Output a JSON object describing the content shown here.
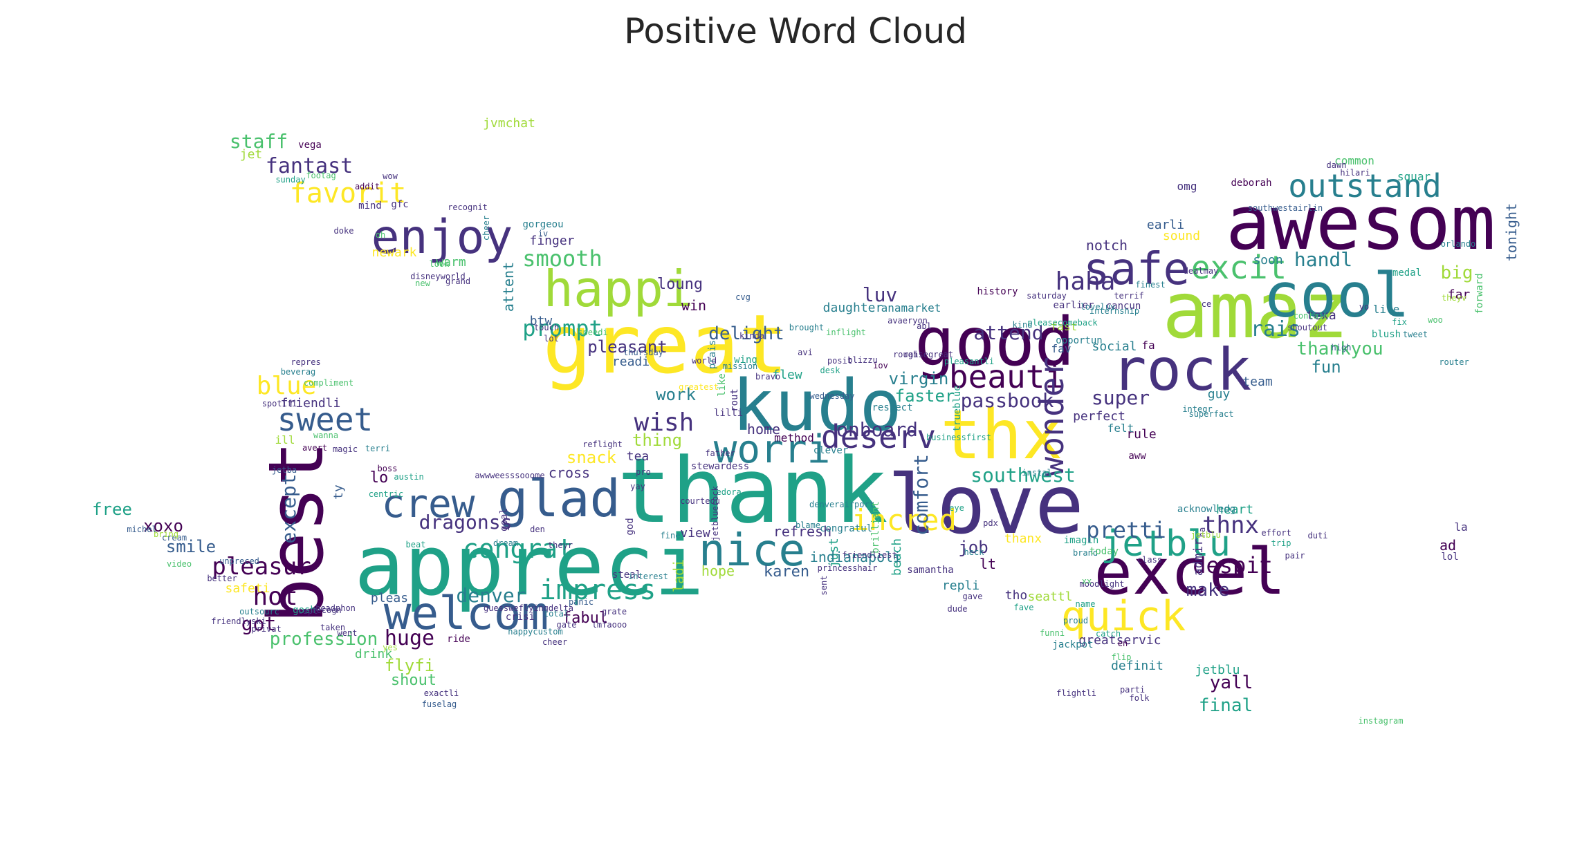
{
  "title": "Positive Word Cloud",
  "palette": [
    "#440154",
    "#46327e",
    "#365c8d",
    "#277f8e",
    "#1fa187",
    "#4ac16d",
    "#a0da39",
    "#fde725"
  ],
  "words": [
    {
      "text": "thank",
      "c": 4
    },
    {
      "text": "appreci",
      "c": 4
    },
    {
      "text": "great",
      "c": 7
    },
    {
      "text": "best",
      "c": 0
    },
    {
      "text": "awesom",
      "c": 0
    },
    {
      "text": "love",
      "c": 1
    },
    {
      "text": "amaz",
      "c": 6
    },
    {
      "text": "good",
      "c": 0
    },
    {
      "text": "excel",
      "c": 0
    },
    {
      "text": "kudo",
      "c": 3
    },
    {
      "text": "thx",
      "c": 7
    },
    {
      "text": "cool",
      "c": 3
    },
    {
      "text": "rock",
      "c": 1
    },
    {
      "text": "happi",
      "c": 6
    },
    {
      "text": "enjoy",
      "c": 1
    },
    {
      "text": "welcom",
      "c": 2
    },
    {
      "text": "glad",
      "c": 2
    },
    {
      "text": "nice",
      "c": 3
    },
    {
      "text": "safe",
      "c": 1
    },
    {
      "text": "worri",
      "c": 3
    },
    {
      "text": "crew",
      "c": 2
    },
    {
      "text": "outstand",
      "c": 3
    },
    {
      "text": "quick",
      "c": 7
    },
    {
      "text": "deserv",
      "c": 1
    },
    {
      "text": "beauti",
      "c": 0
    },
    {
      "text": "jetblu",
      "c": 4
    },
    {
      "text": "wonder",
      "c": 1
    },
    {
      "text": "excit",
      "c": 5
    },
    {
      "text": "sweet",
      "c": 2
    },
    {
      "text": "incred",
      "c": 7
    },
    {
      "text": "impress",
      "c": 4
    },
    {
      "text": "pleasur",
      "c": 0
    },
    {
      "text": "favorit",
      "c": 7
    },
    {
      "text": "blue",
      "c": 7
    },
    {
      "text": "smooth",
      "c": 5
    },
    {
      "text": "prompt",
      "c": 4
    },
    {
      "text": "wish",
      "c": 1
    },
    {
      "text": "thnx",
      "c": 1
    },
    {
      "text": "despit",
      "c": 0
    },
    {
      "text": "haha",
      "c": 1
    },
    {
      "text": "southwest",
      "c": 4
    },
    {
      "text": "hot",
      "c": 0
    },
    {
      "text": "pretti",
      "c": 2
    },
    {
      "text": "fantast",
      "c": 1
    },
    {
      "text": "congrat",
      "c": 4
    },
    {
      "text": "huge",
      "c": 0
    },
    {
      "text": "passbook",
      "c": 1
    },
    {
      "text": "attend",
      "c": 1
    },
    {
      "text": "handl",
      "c": 3
    },
    {
      "text": "rais",
      "c": 3
    },
    {
      "text": "luv",
      "c": 1
    },
    {
      "text": "onboard",
      "c": 1
    },
    {
      "text": "except",
      "c": 2
    },
    {
      "text": "comfort",
      "c": 2
    },
    {
      "text": "denver",
      "c": 3
    },
    {
      "text": "dragonss",
      "c": 1
    },
    {
      "text": "staff",
      "c": 5
    },
    {
      "text": "big",
      "c": 6
    },
    {
      "text": "super",
      "c": 1
    },
    {
      "text": "thankyou",
      "c": 5
    },
    {
      "text": "pleasant",
      "c": 1
    },
    {
      "text": "delight",
      "c": 2
    },
    {
      "text": "profession",
      "c": 5
    },
    {
      "text": "make",
      "c": 1
    },
    {
      "text": "final",
      "c": 4
    },
    {
      "text": "yall",
      "c": 0
    },
    {
      "text": "virgin",
      "c": 3
    },
    {
      "text": "job",
      "c": 1
    },
    {
      "text": "fun",
      "c": 3
    },
    {
      "text": "faster",
      "c": 4
    },
    {
      "text": "snack",
      "c": 7
    },
    {
      "text": "cross",
      "c": 1
    },
    {
      "text": "thing",
      "c": 6
    },
    {
      "text": "home",
      "c": 1
    },
    {
      "text": "karen",
      "c": 2
    },
    {
      "text": "smile",
      "c": 2
    },
    {
      "text": "got",
      "c": 0
    },
    {
      "text": "xoxo",
      "c": 0
    },
    {
      "text": "free",
      "c": 4
    },
    {
      "text": "flyfi",
      "c": 6
    },
    {
      "text": "shout",
      "c": 5
    },
    {
      "text": "fabul",
      "c": 0
    },
    {
      "text": "refresh",
      "c": 1
    },
    {
      "text": "hope",
      "c": 6
    },
    {
      "text": "work",
      "c": 3
    },
    {
      "text": "loung",
      "c": 1
    },
    {
      "text": "win",
      "c": 0
    },
    {
      "text": "readi",
      "c": 2
    },
    {
      "text": "btw",
      "c": 2
    },
    {
      "text": "finger",
      "c": 1
    },
    {
      "text": "attent",
      "c": 3
    },
    {
      "text": "notch",
      "c": 1
    },
    {
      "text": "sound",
      "c": 7
    },
    {
      "text": "earli",
      "c": 2
    },
    {
      "text": "soon",
      "c": 3
    },
    {
      "text": "far",
      "c": 0
    },
    {
      "text": "tonight",
      "c": 2
    },
    {
      "text": "team",
      "c": 2
    },
    {
      "text": "guy",
      "c": 3
    },
    {
      "text": "perfect",
      "c": 1
    },
    {
      "text": "rule",
      "c": 0
    },
    {
      "text": "social",
      "c": 3
    },
    {
      "text": "fav",
      "c": 2
    },
    {
      "text": "fast",
      "c": 6
    },
    {
      "text": "friendli",
      "c": 1
    },
    {
      "text": "jetblu",
      "c": 4
    },
    {
      "text": "seattl",
      "c": 6
    },
    {
      "text": "greatservic",
      "c": 1
    },
    {
      "text": "definit",
      "c": 3
    },
    {
      "text": "admir",
      "c": 1
    },
    {
      "text": "repli",
      "c": 3
    },
    {
      "text": "daughter",
      "c": 3
    },
    {
      "text": "anamarket",
      "c": 3
    },
    {
      "text": "flew",
      "c": 4
    },
    {
      "text": "view",
      "c": 1
    },
    {
      "text": "just",
      "c": 4
    },
    {
      "text": "beach",
      "c": 4
    },
    {
      "text": "ladi",
      "c": 6
    },
    {
      "text": "omg",
      "c": 1
    },
    {
      "text": "common",
      "c": 5
    },
    {
      "text": "texa",
      "c": 1
    },
    {
      "text": "mind",
      "c": 1
    },
    {
      "text": "jvmchat",
      "c": 6
    },
    {
      "text": "jet",
      "c": 6
    },
    {
      "text": "history",
      "c": 0
    },
    {
      "text": "heart",
      "c": 4
    },
    {
      "text": "la",
      "c": 1
    },
    {
      "text": "ad",
      "c": 0
    },
    {
      "text": "lol",
      "c": 1
    },
    {
      "text": "tho",
      "c": 1
    },
    {
      "text": "lt",
      "c": 0
    },
    {
      "text": "tea",
      "c": 1
    },
    {
      "text": "steal",
      "c": 1
    },
    {
      "text": "pleas",
      "c": 2
    },
    {
      "text": "drink",
      "c": 5
    },
    {
      "text": "ride",
      "c": 0
    },
    {
      "text": "fa",
      "c": 0
    },
    {
      "text": "ill",
      "c": 6
    },
    {
      "text": "lo",
      "c": 0
    },
    {
      "text": "ty",
      "c": 2
    },
    {
      "text": "wanna",
      "c": 5
    },
    {
      "text": "magic",
      "c": 1
    },
    {
      "text": "boss",
      "c": 0
    },
    {
      "text": "avert",
      "c": 0
    },
    {
      "text": "terri",
      "c": 3
    },
    {
      "text": "austin",
      "c": 4
    },
    {
      "text": "jetba",
      "c": 2
    },
    {
      "text": "cream",
      "c": 2
    },
    {
      "text": "video",
      "c": 5
    },
    {
      "text": "safeti",
      "c": 7
    },
    {
      "text": "gosh",
      "c": 4
    },
    {
      "text": "outsourc",
      "c": 3
    },
    {
      "text": "warm",
      "c": 5
    },
    {
      "text": "newark",
      "c": 7
    },
    {
      "text": "gfc",
      "c": 1
    },
    {
      "text": "grand",
      "c": 1
    },
    {
      "text": "sunday",
      "c": 4
    },
    {
      "text": "wow",
      "c": 1
    },
    {
      "text": "gorgeou",
      "c": 3
    },
    {
      "text": "recognit",
      "c": 1
    },
    {
      "text": "touch",
      "c": 1
    },
    {
      "text": "cheer",
      "c": 3
    },
    {
      "text": "iov",
      "c": 0
    },
    {
      "text": "desk",
      "c": 4
    },
    {
      "text": "respect",
      "c": 3
    },
    {
      "text": "trueblue",
      "c": 4
    },
    {
      "text": "businessfirst",
      "c": 4
    },
    {
      "text": "pleasantli",
      "c": 4
    },
    {
      "text": "earlier",
      "c": 1
    },
    {
      "text": "felt",
      "c": 3
    },
    {
      "text": "cancun",
      "c": 1
    },
    {
      "text": "opportun",
      "c": 3
    },
    {
      "text": "high",
      "c": 2
    },
    {
      "text": "tweet",
      "c": 3
    },
    {
      "text": "woo",
      "c": 5
    },
    {
      "text": "thanx",
      "c": 7
    },
    {
      "text": "eye",
      "c": 4
    },
    {
      "text": "brand",
      "c": 3
    },
    {
      "text": "imagin",
      "c": 4
    },
    {
      "text": "proud",
      "c": 3
    },
    {
      "text": "jackpot",
      "c": 3
    },
    {
      "text": "funni",
      "c": 5
    },
    {
      "text": "class",
      "c": 1
    },
    {
      "text": "acknowledg",
      "c": 3
    },
    {
      "text": "prais",
      "c": 3
    },
    {
      "text": "like",
      "c": 5
    },
    {
      "text": "wing",
      "c": 4
    },
    {
      "text": "rout",
      "c": 1
    },
    {
      "text": "clever",
      "c": 3
    },
    {
      "text": "method",
      "c": 0
    },
    {
      "text": "congratul",
      "c": 3
    },
    {
      "text": "indianapoli",
      "c": 3
    },
    {
      "text": "brilliant",
      "c": 5
    },
    {
      "text": "god",
      "c": 1
    },
    {
      "text": "goal",
      "c": 1
    },
    {
      "text": "awwweesssooome",
      "c": 1
    },
    {
      "text": "pro",
      "c": 1
    },
    {
      "text": "yay",
      "c": 1
    },
    {
      "text": "stewardess",
      "c": 1
    },
    {
      "text": "fine",
      "c": 3
    },
    {
      "text": "crisi",
      "c": 1
    },
    {
      "text": "theyr",
      "c": 1
    },
    {
      "text": "beat",
      "c": 4
    },
    {
      "text": "centric",
      "c": 4
    },
    {
      "text": "reflight",
      "c": 1
    },
    {
      "text": "vega",
      "c": 0
    },
    {
      "text": "samantha",
      "c": 1
    },
    {
      "text": "today",
      "c": 5
    },
    {
      "text": "moodlight",
      "c": 1
    },
    {
      "text": "name",
      "c": 4
    },
    {
      "text": "fave",
      "c": 4
    },
    {
      "text": "lilli",
      "c": 1
    },
    {
      "text": "aww",
      "c": 0
    },
    {
      "text": "theyv",
      "c": 6
    },
    {
      "text": "life",
      "c": 3
    },
    {
      "text": "forward",
      "c": 5
    },
    {
      "text": "blush",
      "c": 4
    },
    {
      "text": "shoutout",
      "c": 1
    },
    {
      "text": "deborah",
      "c": 0
    },
    {
      "text": "squar",
      "c": 4
    },
    {
      "text": "dawn",
      "c": 1
    },
    {
      "text": "hilari",
      "c": 1
    },
    {
      "text": "folk",
      "c": 1
    },
    {
      "text": "parti",
      "c": 1
    },
    {
      "text": "flightli",
      "c": 1
    },
    {
      "text": "southwestairlin",
      "c": 2
    },
    {
      "text": "medal",
      "c": 4
    },
    {
      "text": "orlando",
      "c": 3
    },
    {
      "text": "router",
      "c": 3
    },
    {
      "text": "instagram",
      "c": 5
    },
    {
      "text": "catch",
      "c": 4
    },
    {
      "text": "flip",
      "c": 5
    },
    {
      "text": "en",
      "c": 0
    },
    {
      "text": "xx",
      "c": 5
    },
    {
      "text": "ha",
      "c": 1
    },
    {
      "text": "dude",
      "c": 1
    },
    {
      "text": "gave",
      "c": 1
    },
    {
      "text": "heck",
      "c": 3
    },
    {
      "text": "pdx",
      "c": 1
    },
    {
      "text": "instal",
      "c": 3
    },
    {
      "text": "saturday",
      "c": 1
    },
    {
      "text": "iv",
      "c": 2
    },
    {
      "text": "doke",
      "c": 1
    },
    {
      "text": "oh",
      "c": 5
    },
    {
      "text": "footag",
      "c": 5
    },
    {
      "text": "addit",
      "c": 0
    },
    {
      "text": "repres",
      "c": 1
    },
    {
      "text": "beverag",
      "c": 3
    },
    {
      "text": "compliment",
      "c": 5
    },
    {
      "text": "spotifi",
      "c": 1
    },
    {
      "text": "bring",
      "c": 6
    },
    {
      "text": "unpreced",
      "c": 2
    },
    {
      "text": "michel",
      "c": 2
    },
    {
      "text": "better",
      "c": 1
    },
    {
      "text": "friendlyski",
      "c": 1
    },
    {
      "text": "recogn",
      "c": 1
    },
    {
      "text": "capt",
      "c": 1
    },
    {
      "text": "headphon",
      "c": 1
    },
    {
      "text": "taken",
      "c": 1
    },
    {
      "text": "went",
      "c": 1
    },
    {
      "text": "exactli",
      "c": 1
    },
    {
      "text": "fuselag",
      "c": 2
    },
    {
      "text": "privat",
      "c": 1
    },
    {
      "text": "yes",
      "c": 6
    },
    {
      "text": "guessweflyingdelta",
      "c": 1
    },
    {
      "text": "total",
      "c": 3
    },
    {
      "text": "panic",
      "c": 2
    },
    {
      "text": "interest",
      "c": 3
    },
    {
      "text": "grate",
      "c": 1
    },
    {
      "text": "lmfaooo",
      "c": 1
    },
    {
      "text": "den",
      "c": 1
    },
    {
      "text": "friendliest",
      "c": 1
    },
    {
      "text": "blizzu",
      "c": 1
    },
    {
      "text": "posit",
      "c": 1
    },
    {
      "text": "kinda",
      "c": 1
    },
    {
      "text": "mission",
      "c": 3
    },
    {
      "text": "speedi",
      "c": 5
    },
    {
      "text": "lot",
      "c": 1
    },
    {
      "text": "cvg",
      "c": 2
    },
    {
      "text": "inflight",
      "c": 5
    },
    {
      "text": "raisegreat",
      "c": 1
    },
    {
      "text": "abl",
      "c": 1
    },
    {
      "text": "disneyworld",
      "c": 1
    },
    {
      "text": "new",
      "c": 5
    },
    {
      "text": "look",
      "c": 5
    },
    {
      "text": "thursday",
      "c": 2
    },
    {
      "text": "world",
      "c": 1
    },
    {
      "text": "greatest",
      "c": 7
    },
    {
      "text": "wednesday",
      "c": 2
    },
    {
      "text": "denverairport",
      "c": 3
    },
    {
      "text": "father",
      "c": 1
    },
    {
      "text": "fedora",
      "c": 4
    },
    {
      "text": "courteou",
      "c": 1
    },
    {
      "text": "jetbluerock",
      "c": 1
    },
    {
      "text": "princesshair",
      "c": 1
    },
    {
      "text": "sent",
      "c": 1
    },
    {
      "text": "dream",
      "c": 3
    },
    {
      "text": "cheer",
      "c": 1
    },
    {
      "text": "happycustom",
      "c": 3
    },
    {
      "text": "gate",
      "c": 1
    },
    {
      "text": "blame",
      "c": 3
    },
    {
      "text": "avi",
      "c": 1
    },
    {
      "text": "brought",
      "c": 3
    },
    {
      "text": "bravo",
      "c": 1
    },
    {
      "text": "avaeryon",
      "c": 1
    },
    {
      "text": "rough",
      "c": 1
    },
    {
      "text": "pleasecomeback",
      "c": 4
    },
    {
      "text": "internship",
      "c": 3
    },
    {
      "text": "finest",
      "c": 3
    },
    {
      "text": "terrif",
      "c": 1
    },
    {
      "text": "dealmay",
      "c": 1
    },
    {
      "text": "loveluv",
      "c": 3
    },
    {
      "text": "kind",
      "c": 3
    },
    {
      "text": "ce",
      "c": 1
    },
    {
      "text": "yo",
      "c": 1
    },
    {
      "text": "fix",
      "c": 4
    },
    {
      "text": "integr",
      "c": 3
    },
    {
      "text": "superfact",
      "c": 3
    },
    {
      "text": "jetblu",
      "c": 6
    },
    {
      "text": "trip",
      "c": 4
    },
    {
      "text": "pair",
      "c": 1
    },
    {
      "text": "effort",
      "c": 1
    },
    {
      "text": "contain",
      "c": 5
    },
    {
      "text": "duti",
      "c": 1
    },
    {
      "text": "gfc",
      "c": 2
    }
  ]
}
